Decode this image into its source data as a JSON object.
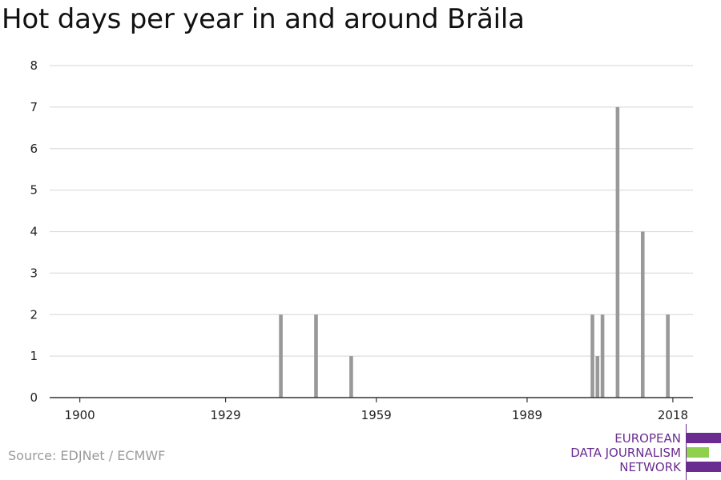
{
  "chart_data": {
    "type": "bar",
    "title": "Hot days per year in and around Brăila",
    "xlabel": "",
    "ylabel": "",
    "xlim": [
      1894,
      2022
    ],
    "ylim": [
      0,
      8
    ],
    "x_ticks": [
      "1900",
      "1929",
      "1959",
      "1989",
      "2018"
    ],
    "y_ticks": [
      "0",
      "1",
      "2",
      "3",
      "4",
      "5",
      "6",
      "7",
      "8"
    ],
    "grid": true,
    "bar_color": "#999999",
    "x": [
      1940,
      1947,
      1954,
      2002,
      2003,
      2004,
      2007,
      2012,
      2017
    ],
    "values": [
      2,
      2,
      1,
      2,
      1,
      2,
      7,
      4,
      2
    ]
  },
  "footer": {
    "source": "Source: EDJNet / ECMWF"
  },
  "logo": {
    "line1": "EUROPEAN",
    "line2": "DATA JOURNALISM",
    "line3": "NETWORK",
    "primary_color": "#6b2c91",
    "accent_color": "#8fd14f"
  }
}
